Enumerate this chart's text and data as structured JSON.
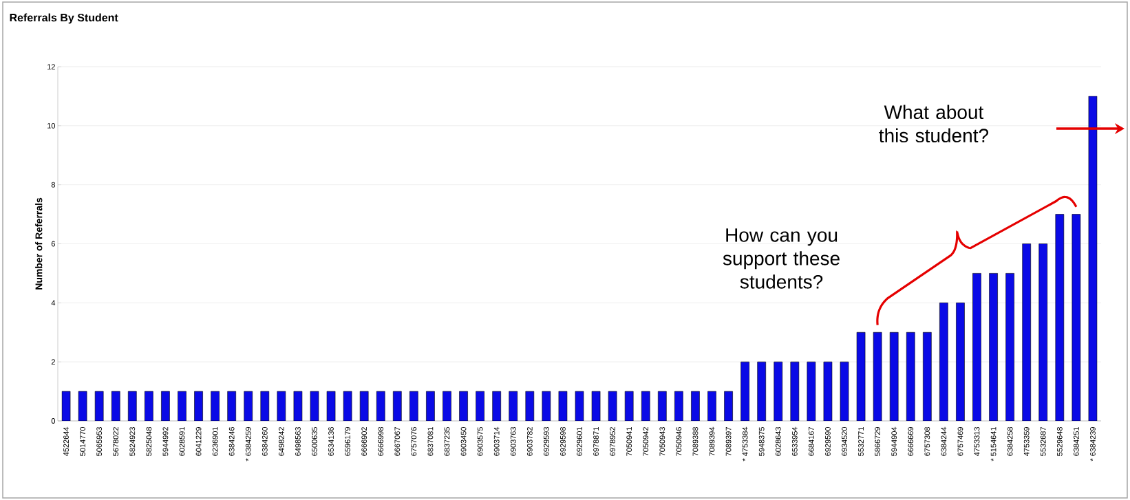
{
  "chart_data": {
    "type": "bar",
    "title": "Referrals By Student",
    "ylabel": "Number of Referrals",
    "categories": [
      "4522644",
      "5014770",
      "5065953",
      "5678022",
      "5824923",
      "5825048",
      "5944992",
      "6028591",
      "6041229",
      "6236901",
      "6384246",
      "* 6384259",
      "6384260",
      "6498242",
      "6498563",
      "6500635",
      "6534136",
      "6596179",
      "6666902",
      "6666998",
      "6667067",
      "6757076",
      "6837081",
      "6837235",
      "6903450",
      "6903575",
      "6903714",
      "6903763",
      "6903782",
      "6929593",
      "6929598",
      "6929601",
      "6978871",
      "6978952",
      "7050941",
      "7050942",
      "7050943",
      "7050946",
      "7089388",
      "7089394",
      "7089397",
      "* 4753384",
      "5948375",
      "6028643",
      "6533954",
      "6684167",
      "6929590",
      "6934520",
      "5532771",
      "5866729",
      "5944904",
      "6666669",
      "6757308",
      "6384244",
      "6757469",
      "4753313",
      "* 5154641",
      "6384258",
      "4753359",
      "5532687",
      "5529648",
      "6384251",
      "* 6384239"
    ],
    "values": [
      1,
      1,
      1,
      1,
      1,
      1,
      1,
      1,
      1,
      1,
      1,
      1,
      1,
      1,
      1,
      1,
      1,
      1,
      1,
      1,
      1,
      1,
      1,
      1,
      1,
      1,
      1,
      1,
      1,
      1,
      1,
      1,
      1,
      1,
      1,
      1,
      1,
      1,
      1,
      1,
      1,
      2,
      2,
      2,
      2,
      2,
      2,
      2,
      3,
      3,
      3,
      3,
      3,
      4,
      4,
      5,
      5,
      5,
      6,
      6,
      7,
      7,
      11
    ],
    "color": "#0a0ae6",
    "ylim": [
      0,
      12
    ],
    "yticks": [
      0,
      2,
      4,
      6,
      8,
      10,
      12
    ],
    "grid": "y",
    "annotations": [
      "What about this student?",
      "How can you support these students?"
    ]
  }
}
